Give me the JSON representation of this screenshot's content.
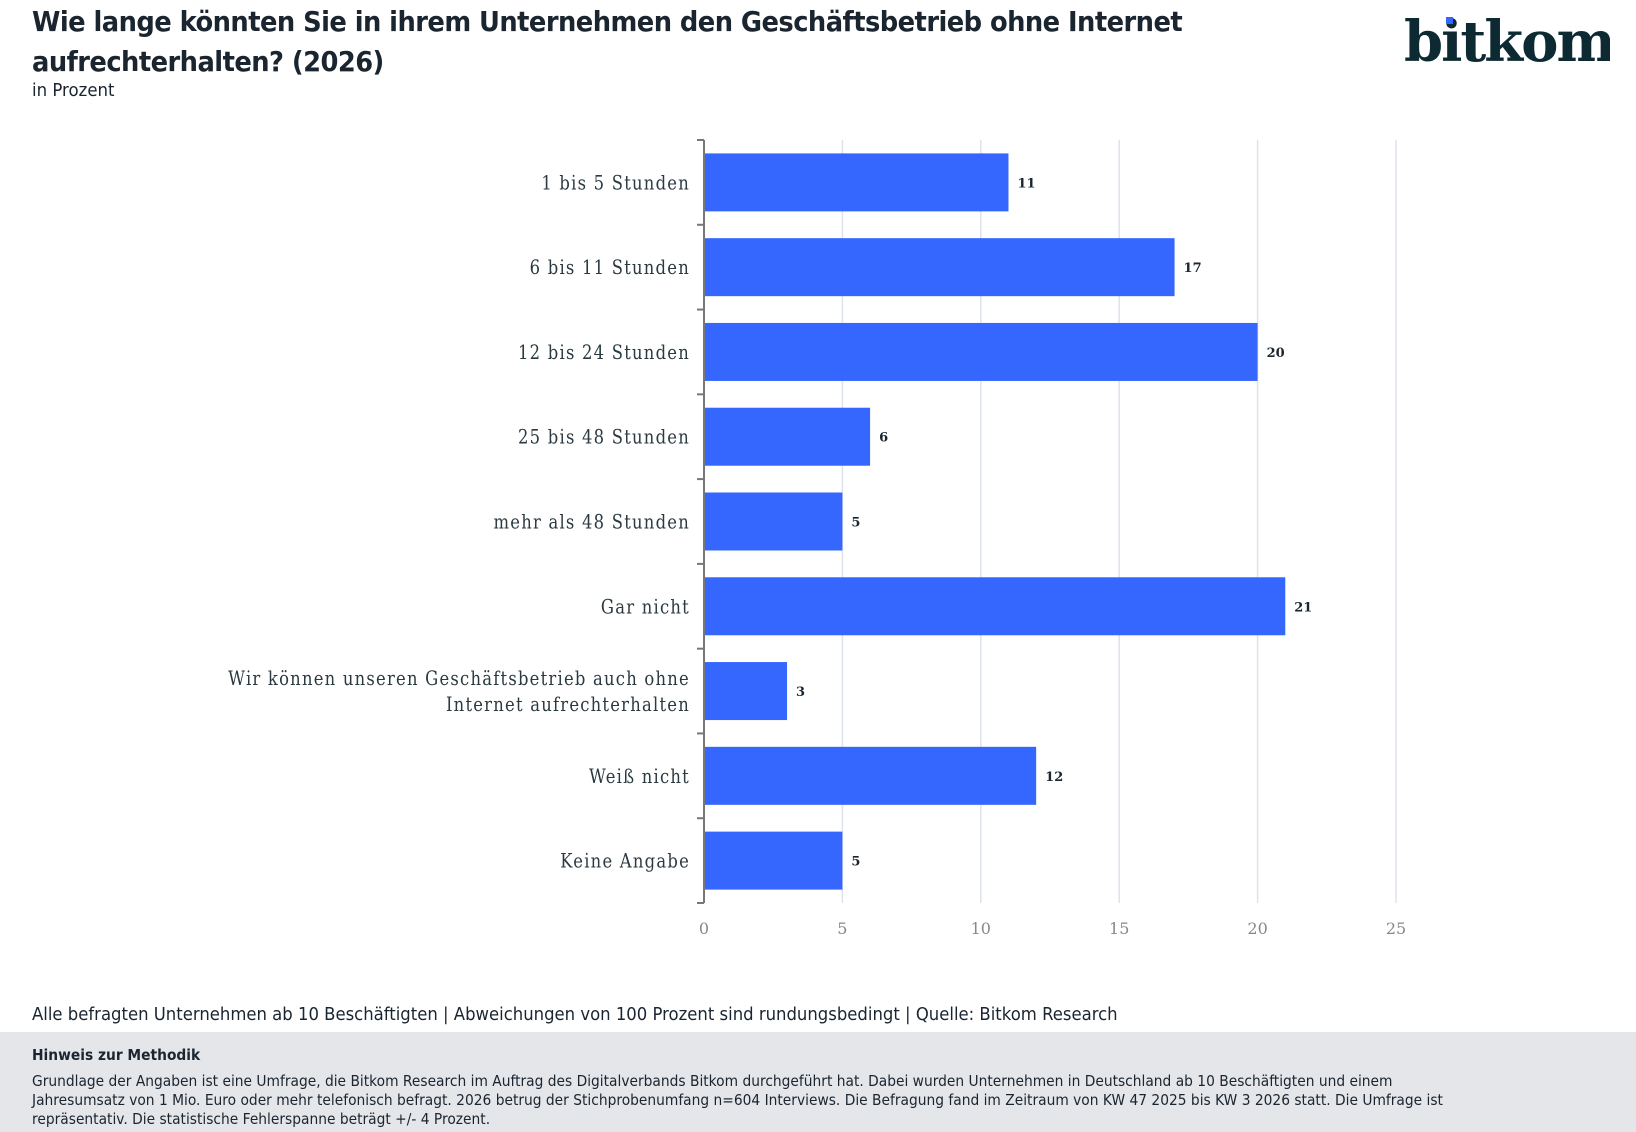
{
  "header": {
    "title": "Wie lange könnten Sie in ihrem Unternehmen den Geschäftsbetrieb ohne Internet aufrechterhalten? (2026)",
    "subtitle": "in Prozent",
    "logo_text": "bitkom"
  },
  "colors": {
    "bar": "#3567ff",
    "grid": "#dde3ee",
    "axis": "#777777",
    "text": "#1a2530",
    "logo": "#0d2a33",
    "logo_dot": "#3567ff",
    "method_bg": "#e5e6ea"
  },
  "chart_data": {
    "type": "bar",
    "orientation": "horizontal",
    "title": "Wie lange könnten Sie in ihrem Unternehmen den Geschäftsbetrieb ohne Internet aufrechterhalten? (2026)",
    "subtitle": "in Prozent",
    "xlabel": "",
    "ylabel": "",
    "xlim": [
      0,
      25
    ],
    "xticks": [
      0,
      5,
      10,
      15,
      20,
      25
    ],
    "grid": true,
    "categories": [
      [
        "1 bis 5 Stunden"
      ],
      [
        "6 bis 11 Stunden"
      ],
      [
        "12 bis 24 Stunden"
      ],
      [
        "25 bis 48 Stunden"
      ],
      [
        "mehr als 48 Stunden"
      ],
      [
        "Gar nicht"
      ],
      [
        "Wir können unseren Geschäftsbetrieb auch ohne",
        "Internet aufrechterhalten"
      ],
      [
        "Weiß nicht"
      ],
      [
        "Keine Angabe"
      ]
    ],
    "values": [
      11,
      17,
      20,
      6,
      5,
      21,
      3,
      12,
      5
    ]
  },
  "footer": {
    "note": "Alle befragten Unternehmen ab 10 Beschäftigten | Abweichungen von 100 Prozent sind rundungsbedingt | Quelle: Bitkom Research",
    "method_title": "Hinweis zur Methodik",
    "method_text": "Grundlage der Angaben ist eine Umfrage, die Bitkom Research im Auftrag des Digitalverbands Bitkom durchgeführt hat. Dabei wurden Unternehmen in Deutschland ab 10 Beschäftigten und einem Jahresumsatz von 1 Mio. Euro oder mehr telefonisch befragt. 2026 betrug der Stichprobenumfang n=604 Interviews. Die Befragung fand im Zeitraum von KW 47 2025 bis KW 3 2026 statt. Die Umfrage ist repräsentativ. Die statistische Fehlerspanne beträgt +/- 4 Prozent."
  }
}
